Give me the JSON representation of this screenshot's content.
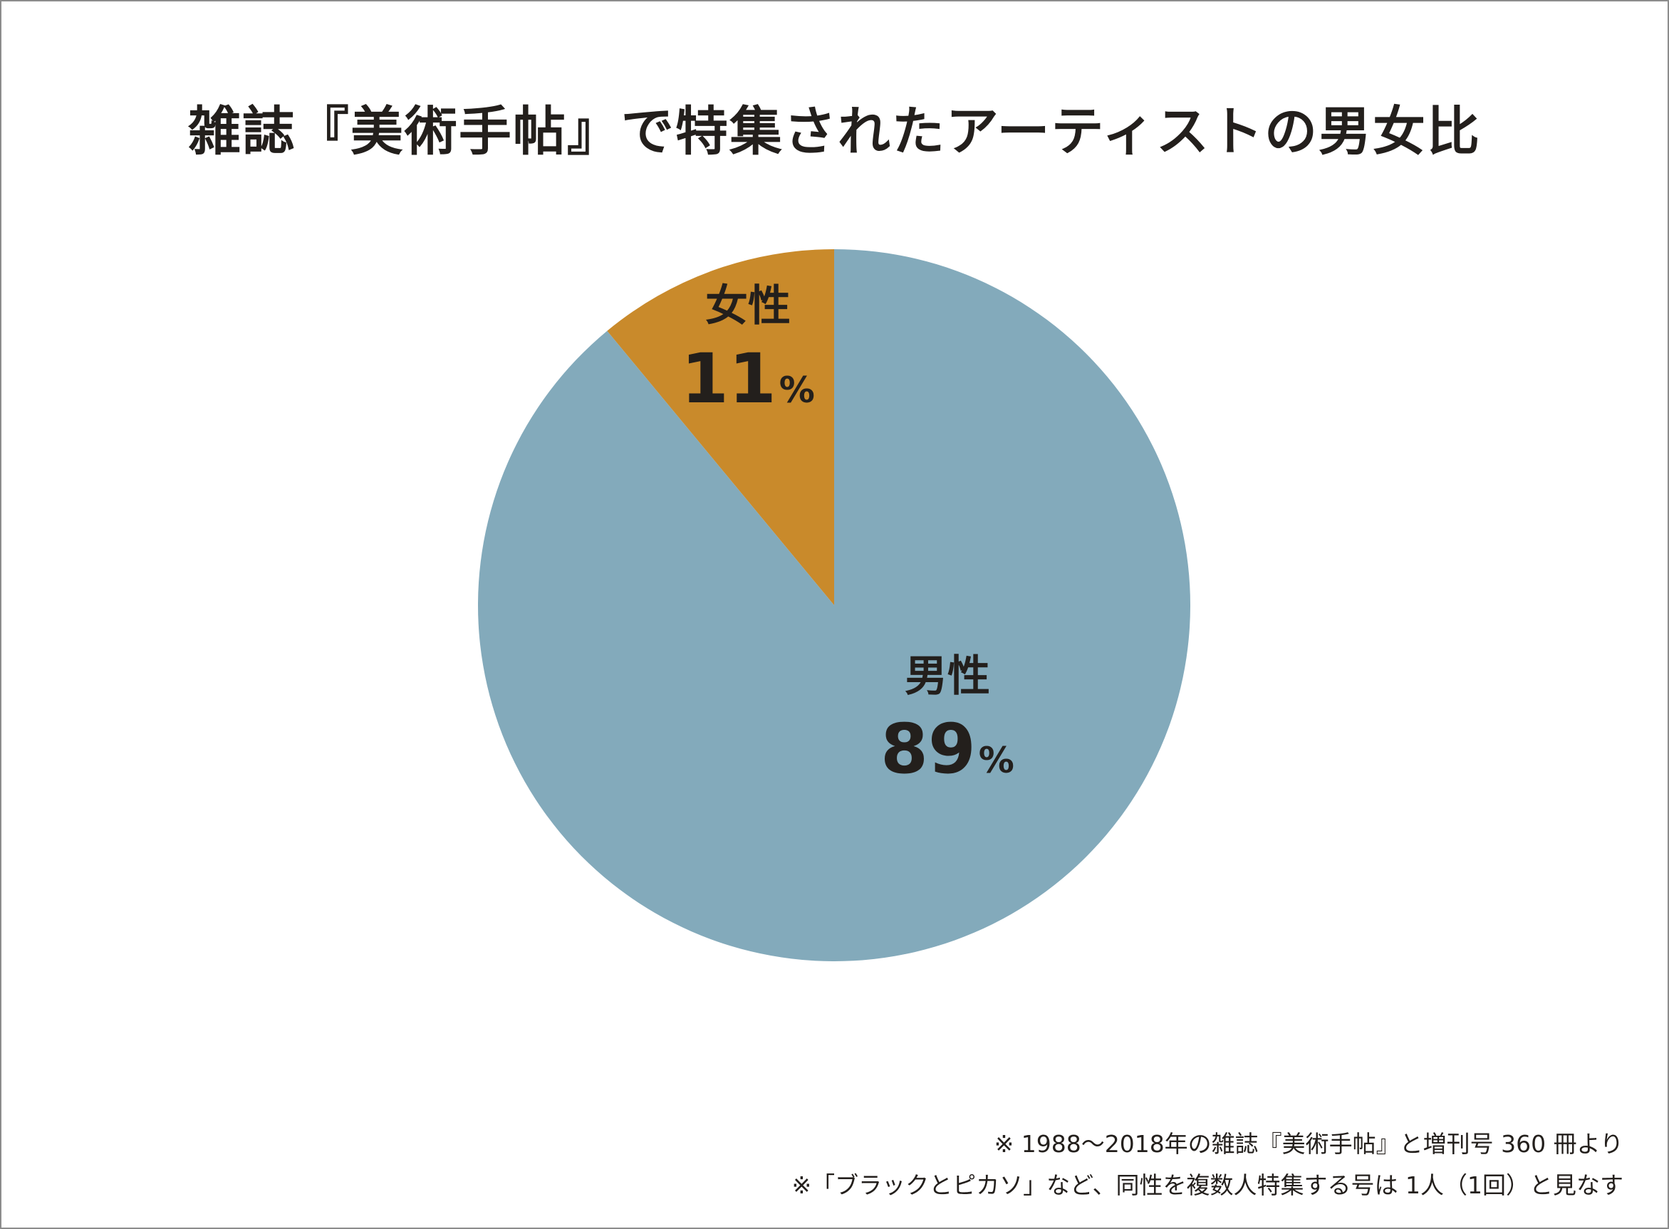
{
  "chart_data": {
    "type": "pie",
    "title": "雑誌『美術手帖』で特集されたアーティストの男女比",
    "unit": "%",
    "slices": [
      {
        "name": "女性",
        "value": 11,
        "color": "#c98a2b"
      },
      {
        "name": "男性",
        "value": 89,
        "color": "#83aabb"
      }
    ],
    "start_angle": "12 o'clock",
    "direction": "counter-clockwise",
    "legend": "none (labels inside slices)"
  },
  "notes": [
    "※ 1988～2018年の雑誌『美術手帖』と増刊号 360 冊より",
    "※「ブラックとピカソ」など、同性を複数人特集する号は 1人（1回）と見なす"
  ]
}
